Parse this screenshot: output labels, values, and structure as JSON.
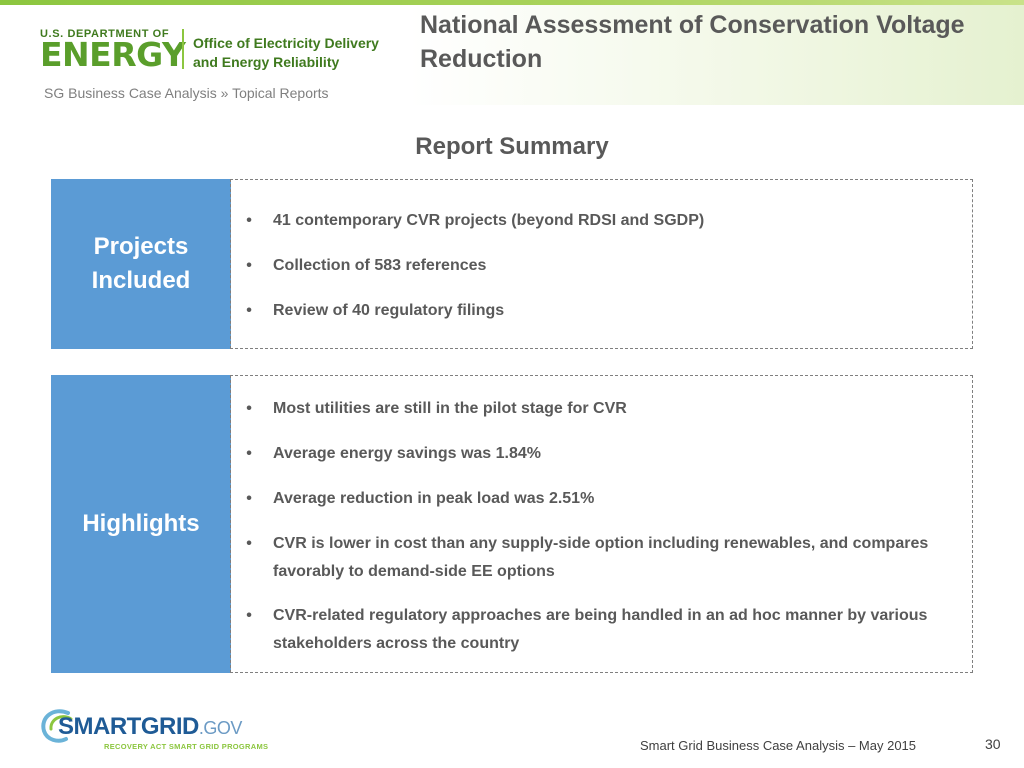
{
  "header": {
    "doe_small": "U.S. DEPARTMENT OF",
    "doe_big": "ENERGY",
    "office_line1": "Office of Electricity Delivery",
    "office_line2": "and Energy Reliability",
    "title": "National Assessment of Conservation Voltage Reduction"
  },
  "breadcrumb": {
    "section": "SG Business Case Analysis",
    "separator": " » ",
    "page": "Topical Reports"
  },
  "report_summary": "Report Summary",
  "panels": [
    {
      "label_line1": "Projects",
      "label_line2": "Included",
      "items": [
        "41 contemporary CVR projects (beyond RDSI and SGDP)",
        "Collection of 583 references",
        "Review of 40 regulatory filings"
      ]
    },
    {
      "label": "Highlights",
      "items": [
        "Most utilities are still in the pilot stage for CVR",
        "Average energy savings was 1.84%",
        "Average reduction in peak load was 2.51%",
        "CVR is lower in cost than any supply-side option including renewables, and compares favorably to demand-side EE options",
        "CVR-related regulatory approaches are being handled in an ad hoc manner by various stakeholders across the country"
      ]
    }
  ],
  "bullet_char": "•",
  "footer": {
    "sg_logo_main": "SMARTGRID",
    "sg_logo_gov": ".GOV",
    "sg_logo_sub": "RECOVERY ACT SMART GRID PROGRAMS",
    "text": "Smart Grid Business Case Analysis – May 2015",
    "page_number": "30"
  },
  "colors": {
    "label_blue": "#5b9bd5",
    "doe_green": "#5a9e2b",
    "text_gray": "#595959"
  }
}
